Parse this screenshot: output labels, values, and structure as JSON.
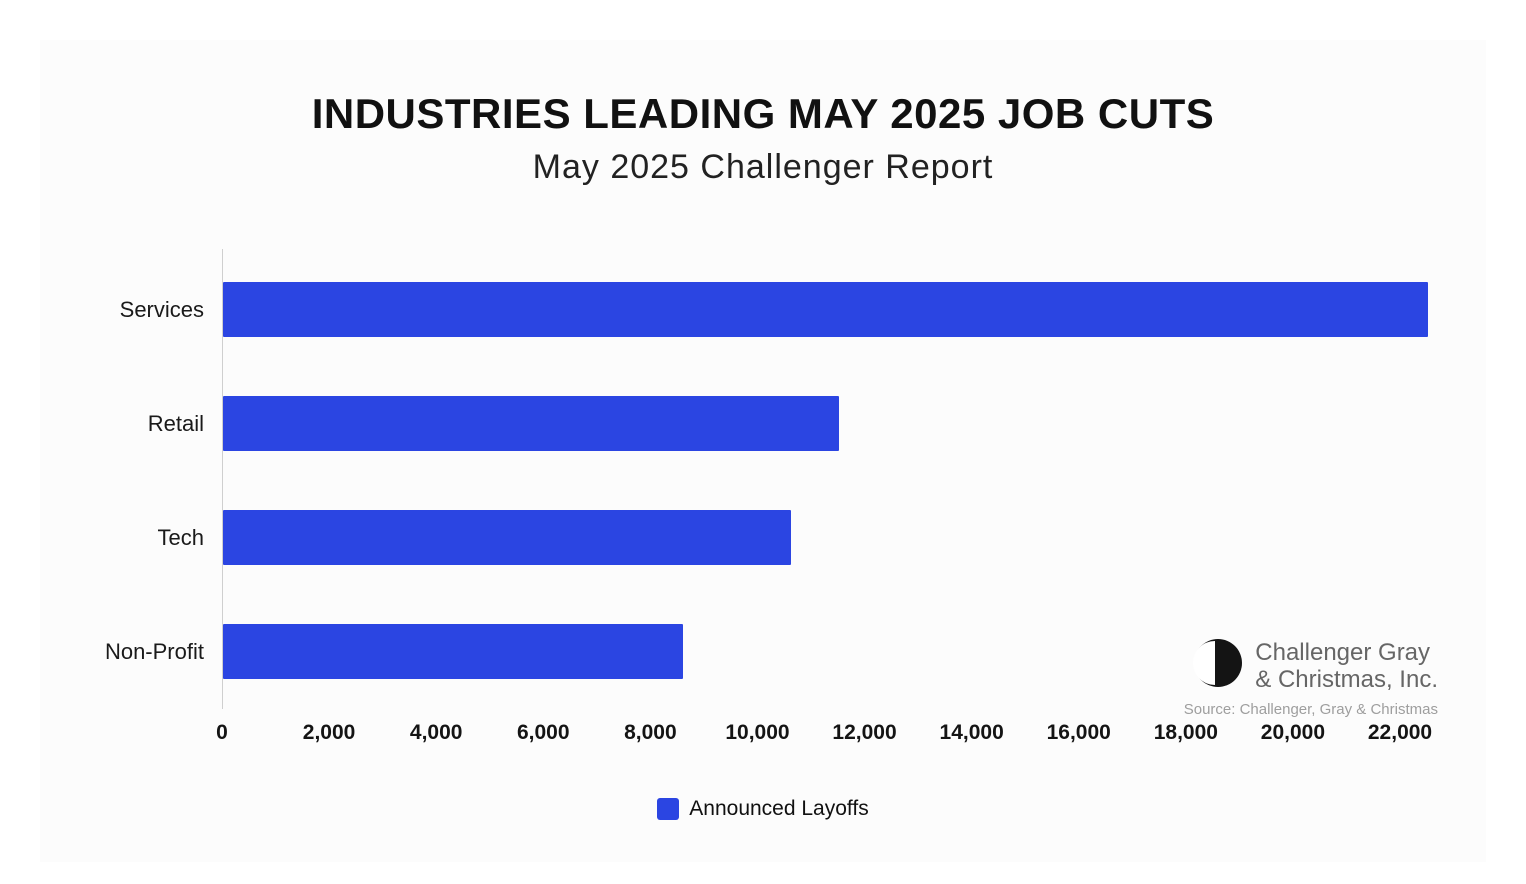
{
  "header": {
    "title": "INDUSTRIES LEADING MAY 2025 JOB CUTS",
    "subtitle": "May 2025 Challenger Report"
  },
  "chart_data": {
    "type": "bar",
    "orientation": "horizontal",
    "title": "INDUSTRIES LEADING MAY 2025 JOB CUTS",
    "subtitle": "May 2025 Challenger Report",
    "categories": [
      "Services",
      "Retail",
      "Tech",
      "Non-Profit"
    ],
    "series": [
      {
        "name": "Announced Layoffs",
        "values": [
          22500,
          11500,
          10600,
          8600
        ]
      }
    ],
    "xlabel": "",
    "ylabel": "",
    "xlim": [
      0,
      22560
    ],
    "x_ticks": [
      0,
      2000,
      4000,
      6000,
      8000,
      10000,
      12000,
      14000,
      16000,
      18000,
      20000,
      22000
    ],
    "x_tick_labels": [
      "0",
      "2,000",
      "4,000",
      "6,000",
      "8,000",
      "10,000",
      "12,000",
      "14,000",
      "16,000",
      "18,000",
      "20,000",
      "22,000"
    ],
    "grid": false,
    "legend_position": "bottom",
    "bar_color": "#2b45e2"
  },
  "legend": {
    "label": "Announced Layoffs",
    "swatch_color": "#2b45e2"
  },
  "branding": {
    "name_line1": "Challenger Gray",
    "name_line2": "& Christmas, Inc.",
    "source": "Source: Challenger, Gray & Christmas"
  }
}
